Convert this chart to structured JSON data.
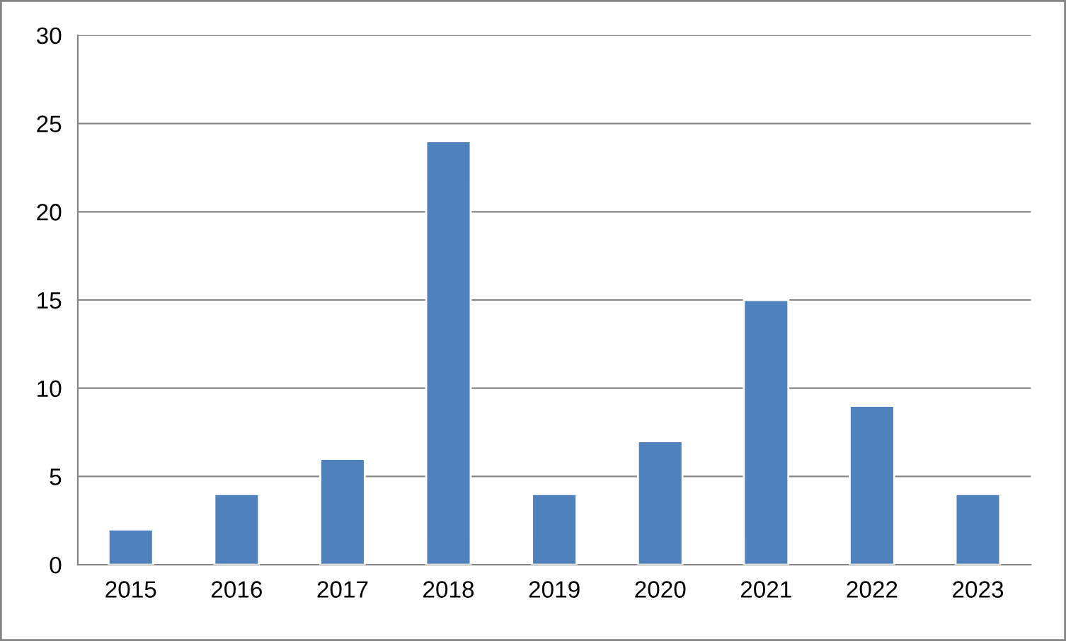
{
  "chart_data": {
    "type": "bar",
    "categories": [
      "2015",
      "2016",
      "2017",
      "2018",
      "2019",
      "2020",
      "2021",
      "2022",
      "2023"
    ],
    "values": [
      2,
      4,
      6,
      24,
      4,
      7,
      15,
      9,
      4
    ],
    "color": "#4f81bd",
    "ylim": [
      0,
      30
    ],
    "yticks": [
      0,
      5,
      10,
      15,
      20,
      25,
      30
    ],
    "grid": "y",
    "legend": false
  }
}
